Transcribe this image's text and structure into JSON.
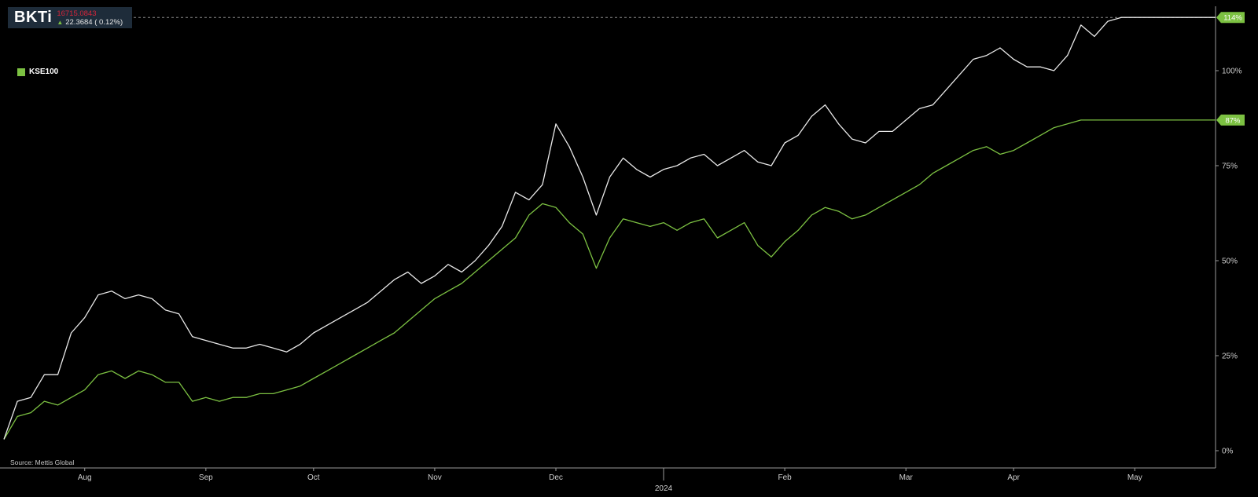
{
  "ticker": {
    "symbol": "BKTi",
    "price": "16715.0843",
    "change": "22.3684 ( 0.12%)"
  },
  "legend": {
    "label": "KSE100"
  },
  "source": "Source: Mettis Global",
  "colors": {
    "background": "#000000",
    "bkti_line": "#e8e8e8",
    "kse100_line": "#7cc142",
    "price_red": "#d6263a",
    "ticker_bg": "#1e2c3a",
    "axis": "#9a9a9a",
    "reference_line": "#8a8a8a"
  },
  "chart_data": {
    "type": "line",
    "xlabel": "",
    "ylabel": "",
    "ylim": [
      0,
      114
    ],
    "y_ticks": [
      "0%",
      "25%",
      "50%",
      "75%",
      "100%"
    ],
    "x_ticks": [
      "Aug",
      "Sep",
      "Oct",
      "Nov",
      "Dec",
      "2024",
      "Feb",
      "Mar",
      "Apr",
      "May"
    ],
    "end_labels": [
      "114%",
      "87%"
    ],
    "reference_line_value": 114,
    "series": [
      {
        "name": "BKTi",
        "x": [
          "Jul-13",
          "Jul-17",
          "Jul-20",
          "Jul-24",
          "Jul-27",
          "Jul-31",
          "Aug-03",
          "Aug-07",
          "Aug-10",
          "Aug-14",
          "Aug-17",
          "Aug-21",
          "Aug-24",
          "Aug-28",
          "Aug-31",
          "Sep-04",
          "Sep-07",
          "Sep-11",
          "Sep-14",
          "Sep-18",
          "Sep-21",
          "Sep-25",
          "Sep-28",
          "Oct-02",
          "Oct-05",
          "Oct-09",
          "Oct-12",
          "Oct-16",
          "Oct-19",
          "Oct-23",
          "Oct-26",
          "Oct-30",
          "Nov-02",
          "Nov-06",
          "Nov-09",
          "Nov-13",
          "Nov-16",
          "Nov-20",
          "Nov-23",
          "Nov-27",
          "Nov-30",
          "Dec-04",
          "Dec-07",
          "Dec-11",
          "Dec-14",
          "Dec-18",
          "Dec-21",
          "Dec-25",
          "Dec-28",
          "Jan-01",
          "Jan-04",
          "Jan-08",
          "Jan-11",
          "Jan-15",
          "Jan-18",
          "Jan-22",
          "Jan-25",
          "Jan-29",
          "Feb-01",
          "Feb-05",
          "Feb-08",
          "Feb-12",
          "Feb-15",
          "Feb-19",
          "Feb-22",
          "Feb-26",
          "Feb-29",
          "Mar-04",
          "Mar-07",
          "Mar-11",
          "Mar-14",
          "Mar-18",
          "Mar-21",
          "Mar-25",
          "Mar-28",
          "Apr-01",
          "Apr-04",
          "Apr-08",
          "Apr-11",
          "Apr-15",
          "Apr-18",
          "Apr-22",
          "Apr-25",
          "Apr-29",
          "May-02",
          "May-06",
          "May-09",
          "May-13",
          "May-16",
          "May-20",
          "May-23"
        ],
        "values": [
          3,
          13,
          14,
          20,
          20,
          31,
          35,
          41,
          42,
          40,
          41,
          40,
          37,
          36,
          30,
          29,
          28,
          27,
          27,
          28,
          27,
          26,
          28,
          31,
          33,
          35,
          37,
          39,
          42,
          45,
          47,
          44,
          46,
          49,
          47,
          50,
          54,
          59,
          68,
          66,
          70,
          86,
          80,
          72,
          62,
          72,
          77,
          74,
          72,
          74,
          75,
          77,
          78,
          75,
          77,
          79,
          76,
          75,
          81,
          83,
          88,
          91,
          86,
          82,
          81,
          84,
          84,
          87,
          90,
          91,
          95,
          99,
          103,
          104,
          106,
          103,
          101,
          101,
          100,
          104,
          112,
          109,
          113,
          114,
          114,
          114,
          114,
          114,
          114,
          114,
          114
        ]
      },
      {
        "name": "KSE100",
        "x": [
          "Jul-13",
          "Jul-17",
          "Jul-20",
          "Jul-24",
          "Jul-27",
          "Jul-31",
          "Aug-03",
          "Aug-07",
          "Aug-10",
          "Aug-14",
          "Aug-17",
          "Aug-21",
          "Aug-24",
          "Aug-28",
          "Aug-31",
          "Sep-04",
          "Sep-07",
          "Sep-11",
          "Sep-14",
          "Sep-18",
          "Sep-21",
          "Sep-25",
          "Sep-28",
          "Oct-02",
          "Oct-05",
          "Oct-09",
          "Oct-12",
          "Oct-16",
          "Oct-19",
          "Oct-23",
          "Oct-26",
          "Oct-30",
          "Nov-02",
          "Nov-06",
          "Nov-09",
          "Nov-13",
          "Nov-16",
          "Nov-20",
          "Nov-23",
          "Nov-27",
          "Nov-30",
          "Dec-04",
          "Dec-07",
          "Dec-11",
          "Dec-14",
          "Dec-18",
          "Dec-21",
          "Dec-25",
          "Dec-28",
          "Jan-01",
          "Jan-04",
          "Jan-08",
          "Jan-11",
          "Jan-15",
          "Jan-18",
          "Jan-22",
          "Jan-25",
          "Jan-29",
          "Feb-01",
          "Feb-05",
          "Feb-08",
          "Feb-12",
          "Feb-15",
          "Feb-19",
          "Feb-22",
          "Feb-26",
          "Feb-29",
          "Mar-04",
          "Mar-07",
          "Mar-11",
          "Mar-14",
          "Mar-18",
          "Mar-21",
          "Mar-25",
          "Mar-28",
          "Apr-01",
          "Apr-04",
          "Apr-08",
          "Apr-11",
          "Apr-15",
          "Apr-18",
          "Apr-22",
          "Apr-25",
          "Apr-29",
          "May-02",
          "May-06",
          "May-09",
          "May-13",
          "May-16",
          "May-20",
          "May-23"
        ],
        "values": [
          3,
          9,
          10,
          13,
          12,
          14,
          16,
          20,
          21,
          19,
          21,
          20,
          18,
          18,
          13,
          14,
          13,
          14,
          14,
          15,
          15,
          16,
          17,
          19,
          21,
          23,
          25,
          27,
          29,
          31,
          34,
          37,
          40,
          42,
          44,
          47,
          50,
          53,
          56,
          62,
          65,
          64,
          60,
          57,
          48,
          56,
          61,
          60,
          59,
          60,
          58,
          60,
          61,
          56,
          58,
          60,
          54,
          51,
          55,
          58,
          62,
          64,
          63,
          61,
          62,
          64,
          66,
          68,
          70,
          73,
          75,
          77,
          79,
          80,
          78,
          79,
          81,
          83,
          85,
          86,
          87,
          87,
          87,
          87,
          87,
          87,
          87,
          87,
          87,
          87,
          87
        ]
      }
    ]
  }
}
